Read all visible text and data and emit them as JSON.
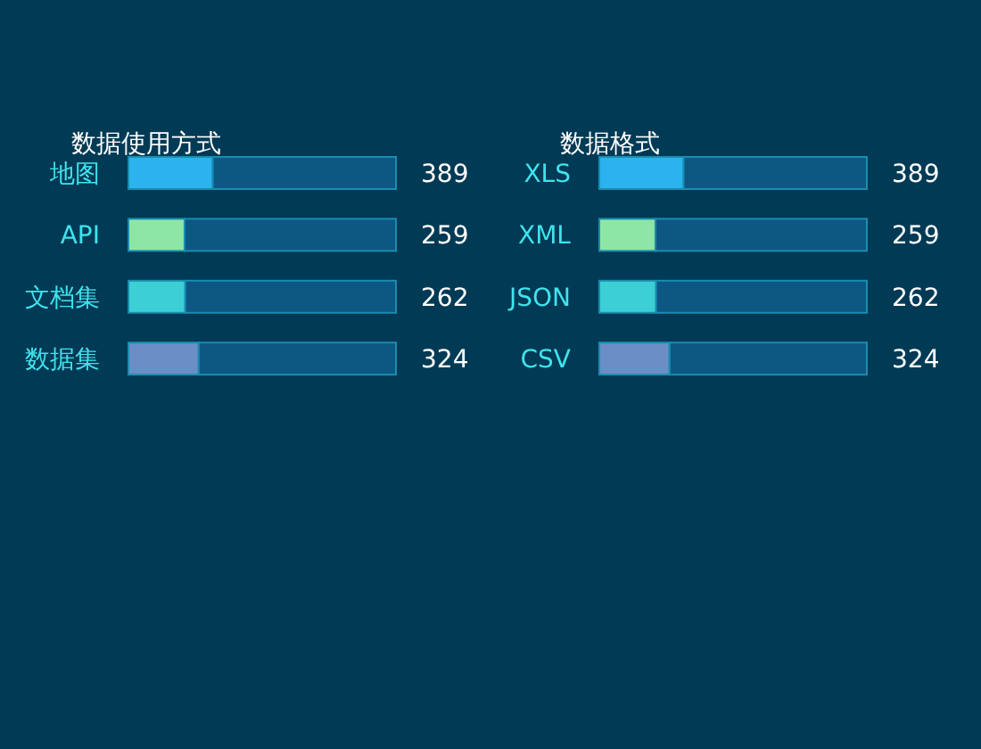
{
  "chart_data": [
    {
      "type": "bar",
      "orientation": "horizontal",
      "stacked": true,
      "title": "数据使用方式",
      "categories": [
        "地图",
        "API",
        "文档集",
        "数据集"
      ],
      "xlim": [
        0,
        1234
      ],
      "tick_labels": "y",
      "series": [
        {
          "colors": [
            "#2ab3ee",
            "#8ee6a6",
            "#3ccfd4",
            "#6a8ec6"
          ],
          "values": [
            389,
            259,
            262,
            324
          ],
          "value_labels": [
            "389",
            "259",
            "262",
            "324"
          ]
        },
        {
          "color": "#0d5783",
          "values": [
            845,
            975,
            972,
            910
          ]
        }
      ]
    },
    {
      "type": "bar",
      "orientation": "horizontal",
      "stacked": true,
      "title": "数据格式",
      "categories": [
        "XLS",
        "XML",
        "JSON",
        "CSV"
      ],
      "xlim": [
        0,
        1234
      ],
      "tick_labels": "y",
      "series": [
        {
          "colors": [
            "#2ab3ee",
            "#8ee6a6",
            "#3ccfd4",
            "#6a8ec6"
          ],
          "values": [
            389,
            259,
            262,
            324
          ],
          "value_labels": [
            "389",
            "259",
            "262",
            "324"
          ]
        },
        {
          "color": "#0d5783",
          "values": [
            845,
            975,
            972,
            910
          ]
        }
      ]
    }
  ]
}
